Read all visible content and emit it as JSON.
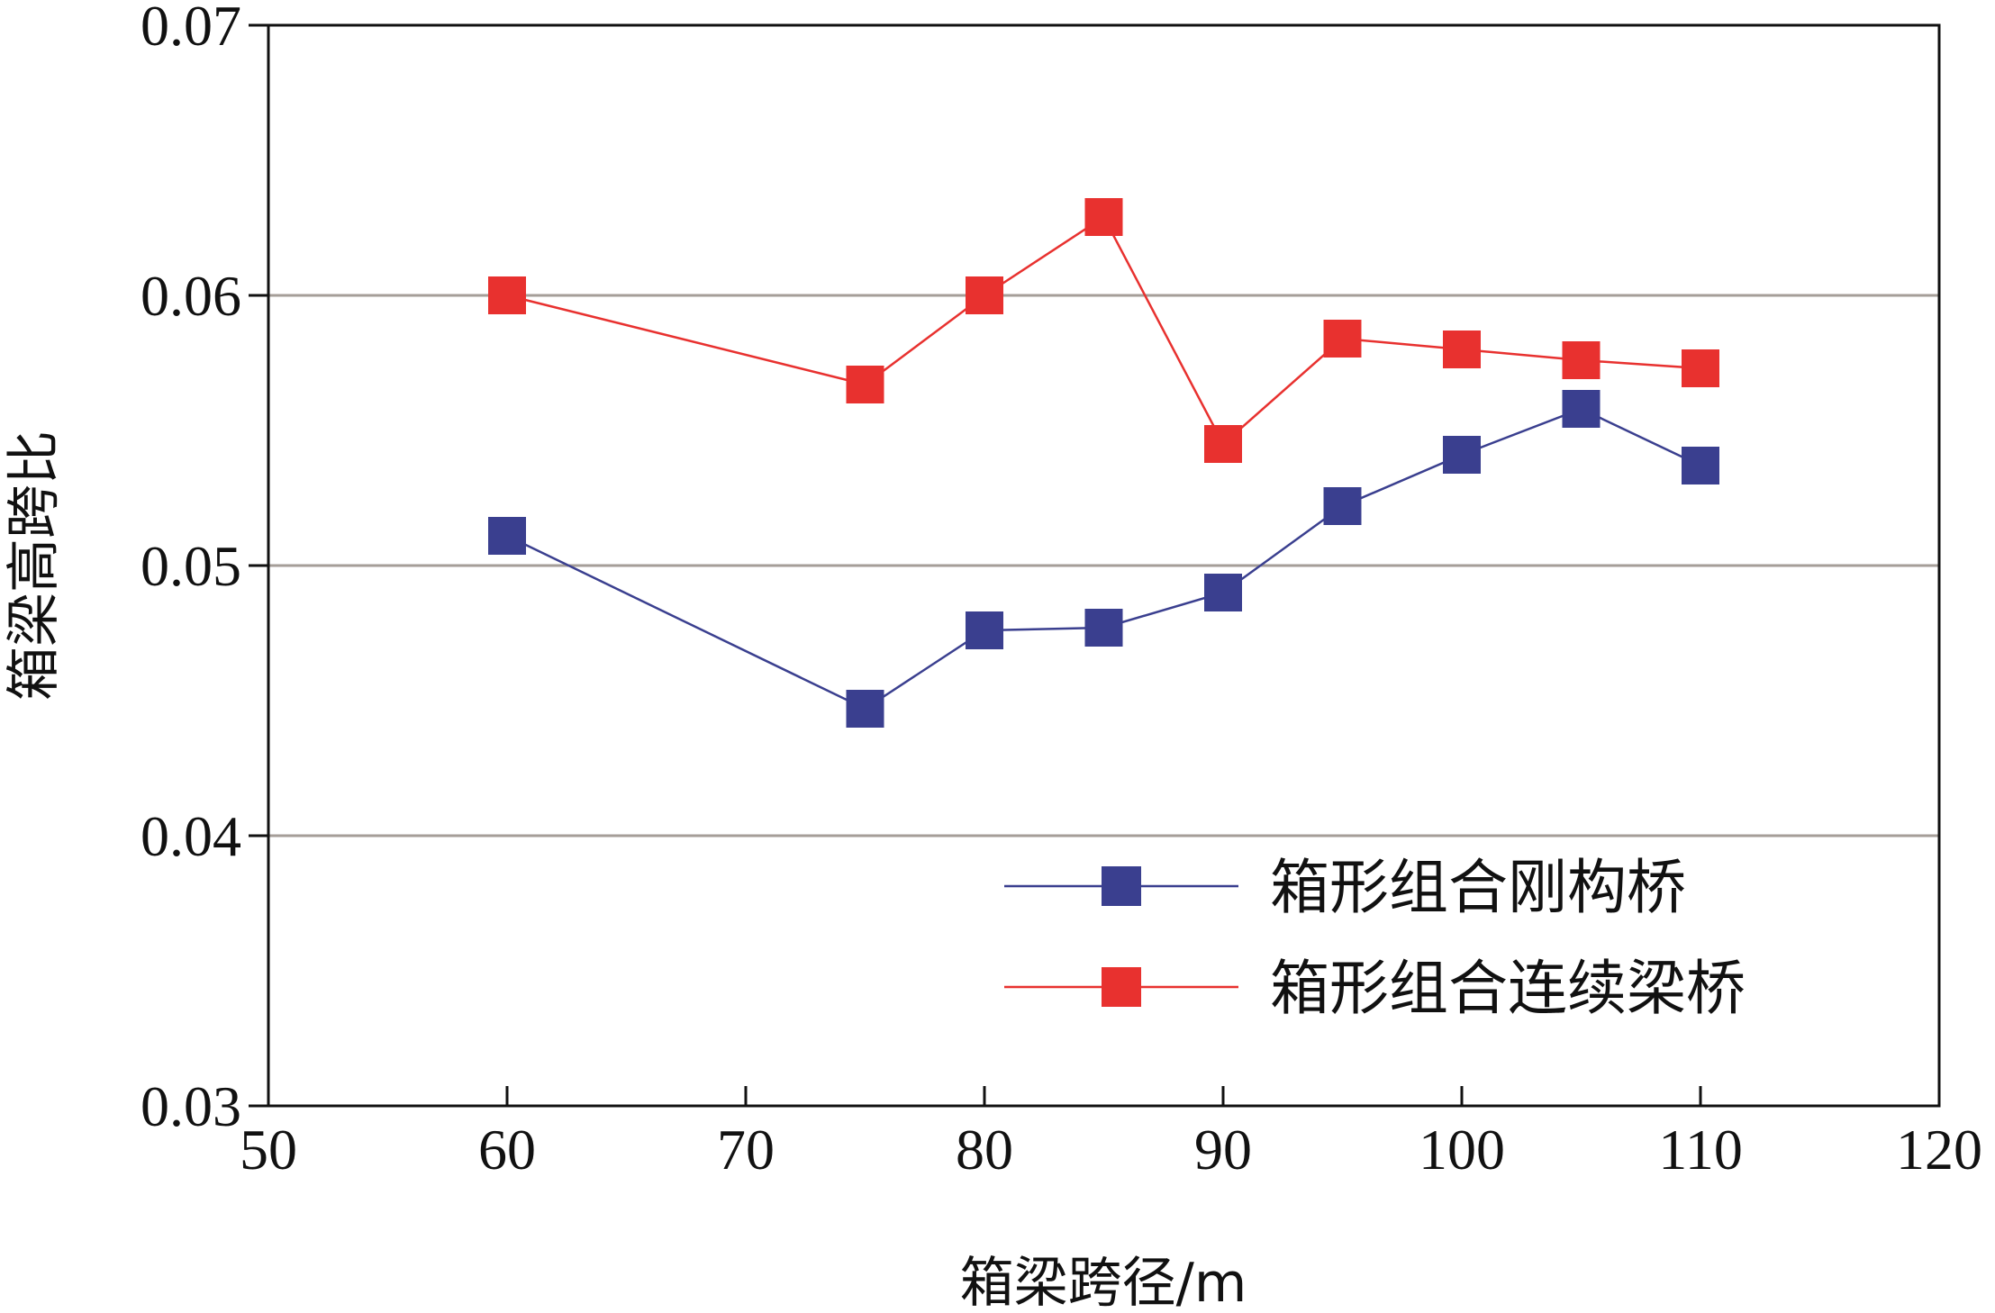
{
  "chart_data": {
    "type": "line",
    "title": "",
    "xlabel": "箱梁跨径/m",
    "ylabel": "箱梁高跨比",
    "xlim": [
      50,
      120
    ],
    "ylim": [
      0.03,
      0.07
    ],
    "xticks": [
      50,
      60,
      70,
      80,
      90,
      100,
      110,
      120
    ],
    "xtick_labels": [
      "50",
      "60",
      "70",
      "80",
      "90",
      "100",
      "110",
      "120"
    ],
    "yticks": [
      0.03,
      0.04,
      0.05,
      0.06,
      0.07
    ],
    "ytick_labels": [
      "0.03",
      "0.04",
      "0.05",
      "0.06",
      "0.07"
    ],
    "grid": "horizontal",
    "legend": "lower-right",
    "series": [
      {
        "name": "箱形组合刚构桥",
        "color": "#3a3f8f",
        "marker": "square",
        "x": [
          60,
          75,
          80,
          85,
          90,
          95,
          100,
          105,
          110
        ],
        "y": [
          0.0511,
          0.0447,
          0.0476,
          0.0477,
          0.049,
          0.0522,
          0.0541,
          0.0558,
          0.0537
        ]
      },
      {
        "name": "箱形组合连续梁桥",
        "color": "#e8312f",
        "marker": "square",
        "x": [
          60,
          75,
          80,
          85,
          90,
          95,
          100,
          105,
          110
        ],
        "y": [
          0.06,
          0.0567,
          0.06,
          0.0629,
          0.0545,
          0.0584,
          0.058,
          0.0576,
          0.0573
        ]
      }
    ]
  }
}
